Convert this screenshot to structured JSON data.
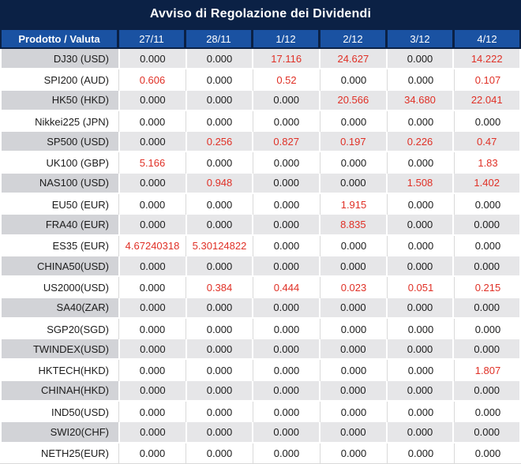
{
  "title": "Avviso di Regolazione dei Dividendi",
  "table": {
    "header": [
      "Prodotto / Valuta",
      "27/11",
      "28/11",
      "1/12",
      "2/12",
      "3/12",
      "4/12"
    ],
    "rows": [
      {
        "product": "DJ30 (USD)",
        "values": [
          "0.000",
          "0.000",
          "17.116",
          "24.627",
          "0.000",
          "14.222"
        ]
      },
      {
        "product": "SPI200 (AUD)",
        "values": [
          "0.606",
          "0.000",
          "0.52",
          "0.000",
          "0.000",
          "0.107"
        ]
      },
      {
        "product": "HK50 (HKD)",
        "values": [
          "0.000",
          "0.000",
          "0.000",
          "20.566",
          "34.680",
          "22.041"
        ]
      },
      {
        "product": "Nikkei225 (JPN)",
        "values": [
          "0.000",
          "0.000",
          "0.000",
          "0.000",
          "0.000",
          "0.000"
        ]
      },
      {
        "product": "SP500 (USD)",
        "values": [
          "0.000",
          "0.256",
          "0.827",
          "0.197",
          "0.226",
          "0.47"
        ]
      },
      {
        "product": "UK100 (GBP)",
        "values": [
          "5.166",
          "0.000",
          "0.000",
          "0.000",
          "0.000",
          "1.83"
        ]
      },
      {
        "product": "NAS100 (USD)",
        "values": [
          "0.000",
          "0.948",
          "0.000",
          "0.000",
          "1.508",
          "1.402"
        ]
      },
      {
        "product": "EU50 (EUR)",
        "values": [
          "0.000",
          "0.000",
          "0.000",
          "1.915",
          "0.000",
          "0.000"
        ]
      },
      {
        "product": "FRA40 (EUR)",
        "values": [
          "0.000",
          "0.000",
          "0.000",
          "8.835",
          "0.000",
          "0.000"
        ]
      },
      {
        "product": "ES35 (EUR)",
        "values": [
          "4.67240318",
          "5.30124822",
          "0.000",
          "0.000",
          "0.000",
          "0.000"
        ]
      },
      {
        "product": "CHINA50(USD)",
        "values": [
          "0.000",
          "0.000",
          "0.000",
          "0.000",
          "0.000",
          "0.000"
        ]
      },
      {
        "product": "US2000(USD)",
        "values": [
          "0.000",
          "0.384",
          "0.444",
          "0.023",
          "0.051",
          "0.215"
        ]
      },
      {
        "product": "SA40(ZAR)",
        "values": [
          "0.000",
          "0.000",
          "0.000",
          "0.000",
          "0.000",
          "0.000"
        ]
      },
      {
        "product": "SGP20(SGD)",
        "values": [
          "0.000",
          "0.000",
          "0.000",
          "0.000",
          "0.000",
          "0.000"
        ]
      },
      {
        "product": "TWINDEX(USD)",
        "values": [
          "0.000",
          "0.000",
          "0.000",
          "0.000",
          "0.000",
          "0.000"
        ]
      },
      {
        "product": "HKTECH(HKD)",
        "values": [
          "0.000",
          "0.000",
          "0.000",
          "0.000",
          "0.000",
          "1.807"
        ]
      },
      {
        "product": "CHINAH(HKD)",
        "values": [
          "0.000",
          "0.000",
          "0.000",
          "0.000",
          "0.000",
          "0.000"
        ]
      },
      {
        "product": "IND50(USD)",
        "values": [
          "0.000",
          "0.000",
          "0.000",
          "0.000",
          "0.000",
          "0.000"
        ]
      },
      {
        "product": "SWI20(CHF)",
        "values": [
          "0.000",
          "0.000",
          "0.000",
          "0.000",
          "0.000",
          "0.000"
        ]
      },
      {
        "product": "NETH25(EUR)",
        "values": [
          "0.000",
          "0.000",
          "0.000",
          "0.000",
          "0.000",
          "0.000"
        ]
      }
    ]
  },
  "colors": {
    "navy": "#0b2145",
    "blue": "#1a52a2",
    "red": "#e03026",
    "row_gray": "#e6e6e8",
    "label_gray": "#d2d3d7",
    "grid": "#d9d9d9",
    "text_dark": "#1c1c1c"
  }
}
